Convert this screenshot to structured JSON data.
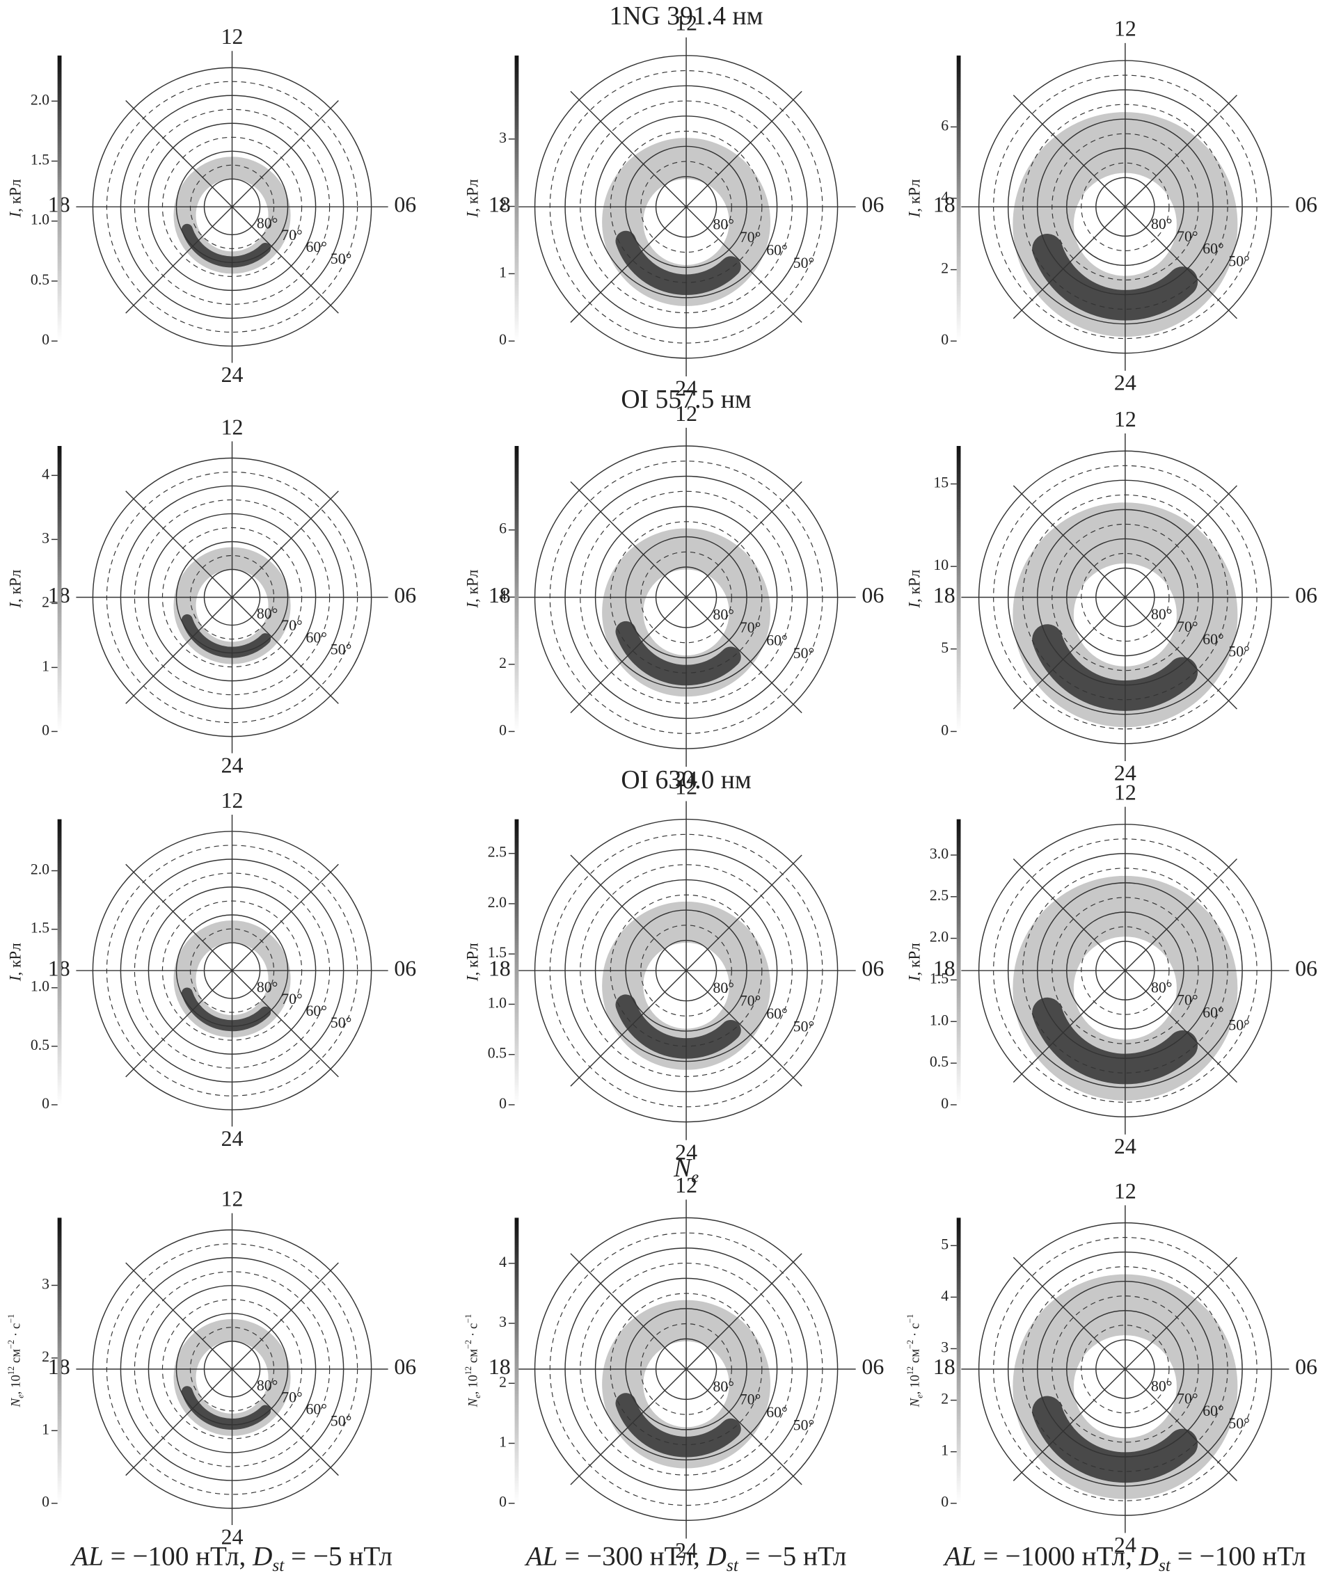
{
  "rows": [
    {
      "title": [
        {
          "text": "1NG 391.4 нм"
        }
      ],
      "panels": [
        {
          "colorbar": {
            "label": [
              {
                "text": "I",
                "style": "italic"
              },
              {
                "text": ", кРл"
              }
            ],
            "lim": [
              0,
              2.38
            ],
            "ticks": [
              0,
              0.5,
              {
                "value": 1,
                "label": "1.0"
              },
              1.5,
              {
                "value": 2,
                "label": "2.0"
              }
            ]
          }
        },
        {
          "colorbar": {
            "label": [
              {
                "text": "I",
                "style": "italic"
              },
              {
                "text": ", кРл"
              }
            ],
            "lim": [
              0,
              4.24
            ],
            "ticks": [
              0,
              1,
              2,
              3
            ]
          }
        },
        {
          "colorbar": {
            "label": [
              {
                "text": "I",
                "style": "italic"
              },
              {
                "text": ", кРл"
              }
            ],
            "lim": [
              0,
              8.0
            ],
            "ticks": [
              0,
              2,
              4,
              6
            ]
          }
        }
      ]
    },
    {
      "title": [
        {
          "text": "OI 557.5 нм"
        }
      ],
      "panels": [
        {
          "colorbar": {
            "label": [
              {
                "text": "I",
                "style": "italic"
              },
              {
                "text": ", кРл"
              }
            ],
            "lim": [
              0,
              4.46
            ],
            "ticks": [
              0,
              1,
              2,
              3,
              4
            ]
          }
        },
        {
          "colorbar": {
            "label": [
              {
                "text": "I",
                "style": "italic"
              },
              {
                "text": ", кРл"
              }
            ],
            "lim": [
              0,
              8.5
            ],
            "ticks": [
              0,
              2,
              4,
              6
            ]
          }
        },
        {
          "colorbar": {
            "label": [
              {
                "text": "I",
                "style": "italic"
              },
              {
                "text": ", кРл"
              }
            ],
            "lim": [
              0,
              17.3
            ],
            "ticks": [
              0,
              5,
              10,
              15
            ]
          }
        }
      ]
    },
    {
      "title": [
        {
          "text": "OI 630.0 нм"
        }
      ],
      "panels": [
        {
          "colorbar": {
            "label": [
              {
                "text": "I",
                "style": "italic"
              },
              {
                "text": ", кРл"
              }
            ],
            "lim": [
              0,
              2.44
            ],
            "ticks": [
              0,
              0.5,
              {
                "value": 1,
                "label": "1.0"
              },
              1.5,
              {
                "value": 2,
                "label": "2.0"
              }
            ]
          }
        },
        {
          "colorbar": {
            "label": [
              {
                "text": "I",
                "style": "italic"
              },
              {
                "text": ", кРл"
              }
            ],
            "lim": [
              0,
              2.84
            ],
            "ticks": [
              0,
              0.5,
              {
                "value": 1,
                "label": "1.0"
              },
              1.5,
              {
                "value": 2,
                "label": "2.0"
              },
              2.5
            ]
          }
        },
        {
          "colorbar": {
            "label": [
              {
                "text": "I",
                "style": "italic"
              },
              {
                "text": ", кРл"
              }
            ],
            "lim": [
              0,
              3.43
            ],
            "ticks": [
              0,
              0.5,
              {
                "value": 1,
                "label": "1.0"
              },
              1.5,
              {
                "value": 2,
                "label": "2.0"
              },
              2.5,
              {
                "value": 3,
                "label": "3.0"
              }
            ]
          }
        }
      ]
    },
    {
      "title": [
        {
          "text": "N",
          "style": "italic"
        },
        {
          "text": "e",
          "style": "sub italic"
        }
      ],
      "panels": [
        {
          "colorbar": {
            "label": [
              {
                "text": "N",
                "style": "italic"
              },
              {
                "text": "e",
                "style": "sub italic"
              },
              {
                "text": ", 10"
              },
              {
                "text": "12",
                "style": "sup"
              },
              {
                "text": " см"
              },
              {
                "text": "−2",
                "style": "sup"
              },
              {
                "text": " · с"
              },
              {
                "text": "−1",
                "style": "sup"
              }
            ],
            "lim": [
              0,
              3.93
            ],
            "ticks": [
              0,
              1,
              2,
              3
            ]
          }
        },
        {
          "colorbar": {
            "label": [
              {
                "text": "N",
                "style": "italic"
              },
              {
                "text": "e",
                "style": "sub italic"
              },
              {
                "text": ", 10"
              },
              {
                "text": "12",
                "style": "sup"
              },
              {
                "text": " см"
              },
              {
                "text": "−2",
                "style": "sup"
              },
              {
                "text": " · с"
              },
              {
                "text": "−1",
                "style": "sup"
              }
            ],
            "lim": [
              0,
              4.76
            ],
            "ticks": [
              0,
              1,
              2,
              3,
              4
            ]
          }
        },
        {
          "colorbar": {
            "label": [
              {
                "text": "N",
                "style": "italic"
              },
              {
                "text": "e",
                "style": "sub italic"
              },
              {
                "text": ", 10"
              },
              {
                "text": "12",
                "style": "sup"
              },
              {
                "text": " см"
              },
              {
                "text": "−2",
                "style": "sup"
              },
              {
                "text": " · с"
              },
              {
                "text": "−1",
                "style": "sup"
              }
            ],
            "lim": [
              0,
              5.54
            ],
            "ticks": [
              0,
              1,
              2,
              3,
              4,
              5
            ]
          }
        }
      ]
    }
  ],
  "polar_labels": {
    "top": "12",
    "left": "18",
    "right": "06",
    "bottom": "24",
    "latitudes": [
      "80°",
      "70°",
      "60°",
      "50°"
    ]
  },
  "captions": [
    [
      {
        "text": "AL",
        "style": "italic"
      },
      {
        "text": " = −100 нТл, "
      },
      {
        "text": "D",
        "style": "italic"
      },
      {
        "text": "st",
        "style": "sub italic"
      },
      {
        "text": " = −5 нТл"
      }
    ],
    [
      {
        "text": "AL",
        "style": "italic"
      },
      {
        "text": " = −300 нТл, "
      },
      {
        "text": "D",
        "style": "italic"
      },
      {
        "text": "st",
        "style": "sub italic"
      },
      {
        "text": " = −5 нТл"
      }
    ],
    [
      {
        "text": "AL",
        "style": "italic"
      },
      {
        "text": " = −1000 нТл, "
      },
      {
        "text": "D",
        "style": "italic"
      },
      {
        "text": "st",
        "style": "sub italic"
      },
      {
        "text": " = −100 нТл"
      }
    ]
  ]
}
